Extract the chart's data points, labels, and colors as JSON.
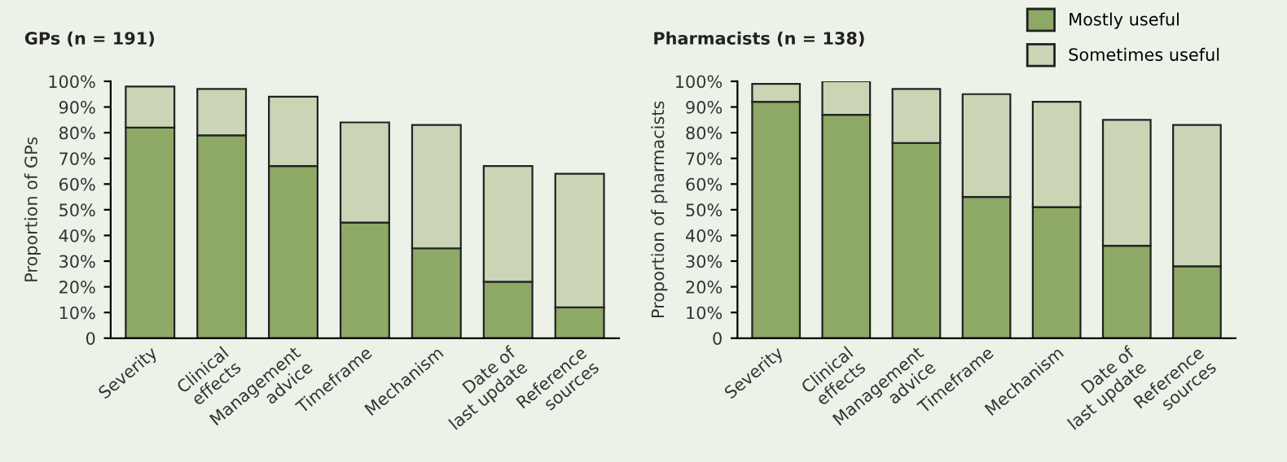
{
  "chart_data": [
    {
      "type": "bar",
      "title": "GPs (n = 191)",
      "ylabel": "Proportion of GPs",
      "stacked": true,
      "categories": [
        "Severity",
        "Clinical\neffects",
        "Management\nadvice",
        "Timeframe",
        "Mechanism",
        "Date of\nlast update",
        "Reference\nsources"
      ],
      "series": [
        {
          "color": "#8ea866",
          "values": [
            82,
            79,
            67,
            45,
            35,
            22,
            12
          ]
        },
        {
          "color": "#c9d5b5",
          "values": [
            16,
            18,
            27,
            39,
            48,
            45,
            52
          ]
        }
      ],
      "ylim": [
        0,
        100
      ],
      "yticks": [
        0,
        {
          "value": 10,
          "label": "10%"
        },
        {
          "value": 20,
          "label": "20%"
        },
        {
          "value": 30,
          "label": "30%"
        },
        {
          "value": 40,
          "label": "40%"
        },
        {
          "value": 50,
          "label": "50%"
        },
        {
          "value": 60,
          "label": "60%"
        },
        {
          "value": 70,
          "label": "70%"
        },
        {
          "value": 80,
          "label": "80%"
        },
        {
          "value": 90,
          "label": "90%"
        },
        {
          "value": 100,
          "label": "100%"
        }
      ],
      "grid": false,
      "legend": false
    },
    {
      "type": "bar",
      "title": "Pharmacists (n = 138)",
      "ylabel": "Proportion of pharmacists",
      "stacked": true,
      "categories": [
        "Severity",
        "Clinical\neffects",
        "Management\nadvice",
        "Timeframe",
        "Mechanism",
        "Date of\nlast update",
        "Reference\nsources"
      ],
      "series": [
        {
          "name": "Mostly useful",
          "color": "#8ea866",
          "values": [
            92,
            87,
            76,
            55,
            51,
            36,
            28
          ]
        },
        {
          "name": "Sometimes useful",
          "color": "#c9d5b5",
          "values": [
            7,
            13,
            21,
            40,
            41,
            49,
            55
          ]
        }
      ],
      "ylim": [
        0,
        100
      ],
      "yticks": [
        0,
        {
          "value": 10,
          "label": "10%"
        },
        {
          "value": 20,
          "label": "20%"
        },
        {
          "value": 30,
          "label": "30%"
        },
        {
          "value": 40,
          "label": "40%"
        },
        {
          "value": 50,
          "label": "50%"
        },
        {
          "value": 60,
          "label": "60%"
        },
        {
          "value": 70,
          "label": "70%"
        },
        {
          "value": 80,
          "label": "80%"
        },
        {
          "value": 90,
          "label": "90%"
        },
        {
          "value": 100,
          "label": "100%"
        }
      ],
      "grid": false,
      "legend": "top right"
    }
  ]
}
